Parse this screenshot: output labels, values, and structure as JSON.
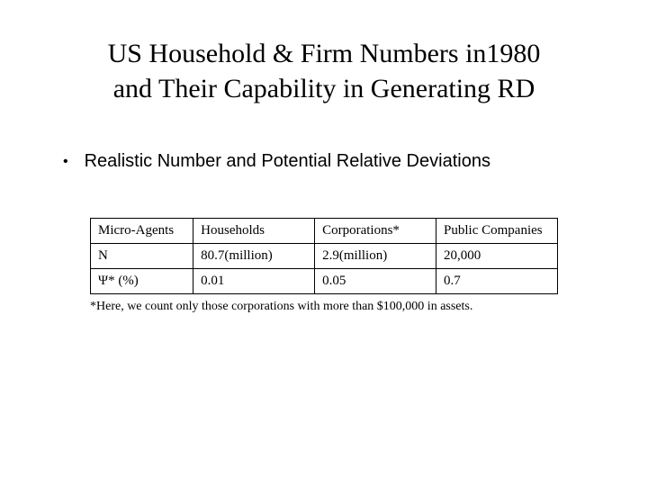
{
  "title_line1": "US Household & Firm Numbers in1980",
  "title_line2": "and Their Capability in Generating RD",
  "bullet_text": "Realistic Number and Potential Relative Deviations",
  "table": {
    "headers": [
      "Micro-Agents",
      "Households",
      "Corporations*",
      "Public Companies"
    ],
    "rows": [
      [
        "N",
        "80.7(million)",
        "2.9(million)",
        "20,000"
      ],
      [
        "Ψ* (%)",
        "0.01",
        "0.05",
        "0.7"
      ]
    ]
  },
  "footnote": "*Here, we count only those corporations with more than $100,000 in assets.",
  "styling": {
    "background_color": "#ffffff",
    "text_color": "#000000",
    "title_font": "Times New Roman",
    "title_fontsize": 30,
    "bullet_font": "Arial",
    "bullet_fontsize": 20,
    "table_font": "Times New Roman",
    "table_fontsize": 15,
    "footnote_fontsize": 14,
    "border_color": "#000000"
  }
}
